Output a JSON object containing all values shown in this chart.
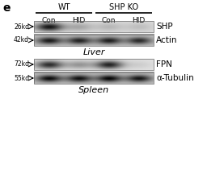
{
  "panel_label": "e",
  "wt_label": "WT",
  "shpko_label": "SHP KO",
  "col_labels": [
    "Con",
    "HID",
    "Con",
    "HID"
  ],
  "liver_label": "Liver",
  "spleen_label": "Spleen",
  "shp_label": "SHP",
  "actin_label": "Actin",
  "fpn_label": "FPN",
  "tubulin_label": "α-Tubulin",
  "mw_labels": [
    "26kd",
    "42kd",
    "72kd",
    "55kd"
  ],
  "figure_bg": "#ffffff",
  "gel_bg_light": 0.88,
  "gel_bg_dark": 0.72,
  "shp_bands": [
    0.85,
    0.22,
    0.15,
    0.12
  ],
  "actin_bands": [
    0.72,
    0.68,
    0.7,
    0.65
  ],
  "fpn_bands": [
    0.78,
    0.32,
    0.82,
    0.08
  ],
  "tub_bands": [
    0.78,
    0.76,
    0.8,
    0.74
  ]
}
